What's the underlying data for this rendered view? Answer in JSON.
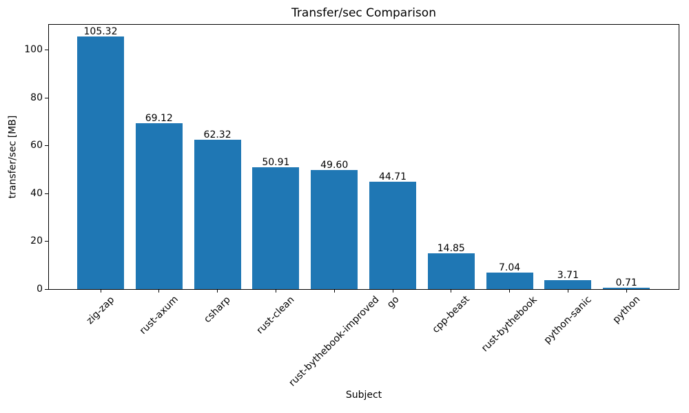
{
  "chart_data": {
    "type": "bar",
    "title": "Transfer/sec Comparison",
    "xlabel": "Subject",
    "ylabel": "transfer/sec [MB]",
    "categories": [
      "zig-zap",
      "rust-axum",
      "csharp",
      "rust-clean",
      "rust-bythebook-improved",
      "go",
      "cpp-beast",
      "rust-bythebook",
      "python-sanic",
      "python"
    ],
    "values": [
      105.32,
      69.12,
      62.32,
      50.91,
      49.6,
      44.71,
      14.85,
      7.04,
      3.71,
      0.71
    ],
    "value_labels": [
      "105.32",
      "69.12",
      "62.32",
      "50.91",
      "49.60",
      "44.71",
      "14.85",
      "7.04",
      "3.71",
      "0.71"
    ],
    "yticks": [
      0,
      20,
      40,
      60,
      80,
      100
    ],
    "ylim": [
      0,
      110.92
    ],
    "grid": false,
    "legend_position": "none",
    "bar_color": "#1f77b4",
    "text_color": "#000000",
    "background_color": "#ffffff",
    "xtick_rotation_deg": 45,
    "bar_label_position": "above-bar"
  }
}
